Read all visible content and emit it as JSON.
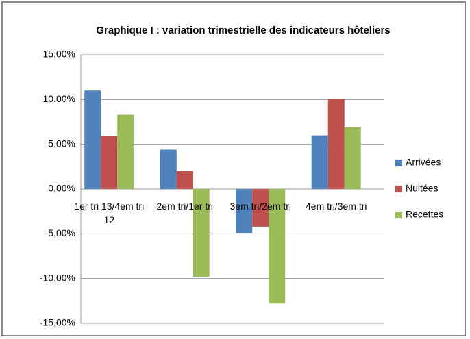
{
  "chart_data": {
    "type": "bar",
    "title": "Graphique I : variation trimestrielle des indicateurs  hôteliers",
    "categories": [
      "1er tri 13/4em tri 12",
      "2em tri/1er tri",
      "3em tri/2em tri",
      "4em tri/3em tri"
    ],
    "series": [
      {
        "name": "Arrivées",
        "color": "#4f81bd",
        "values": [
          11.0,
          4.4,
          -4.9,
          6.0
        ]
      },
      {
        "name": "Nuitées",
        "color": "#c0504d",
        "values": [
          5.9,
          2.0,
          -4.2,
          10.1
        ]
      },
      {
        "name": "Recettes",
        "color": "#9bbb59",
        "values": [
          8.3,
          -9.8,
          -12.8,
          6.9
        ]
      }
    ],
    "ylim": [
      -15,
      15
    ],
    "yticks": [
      {
        "value": -15,
        "label": "-15,00%"
      },
      {
        "value": -10,
        "label": "-10,00%"
      },
      {
        "value": -5,
        "label": "-5,00%"
      },
      {
        "value": 0,
        "label": "0,00%"
      },
      {
        "value": 5,
        "label": "5,00%"
      },
      {
        "value": 10,
        "label": "10,00%"
      },
      {
        "value": 15,
        "label": "15,00%"
      }
    ],
    "grid": true,
    "legend": "right"
  }
}
